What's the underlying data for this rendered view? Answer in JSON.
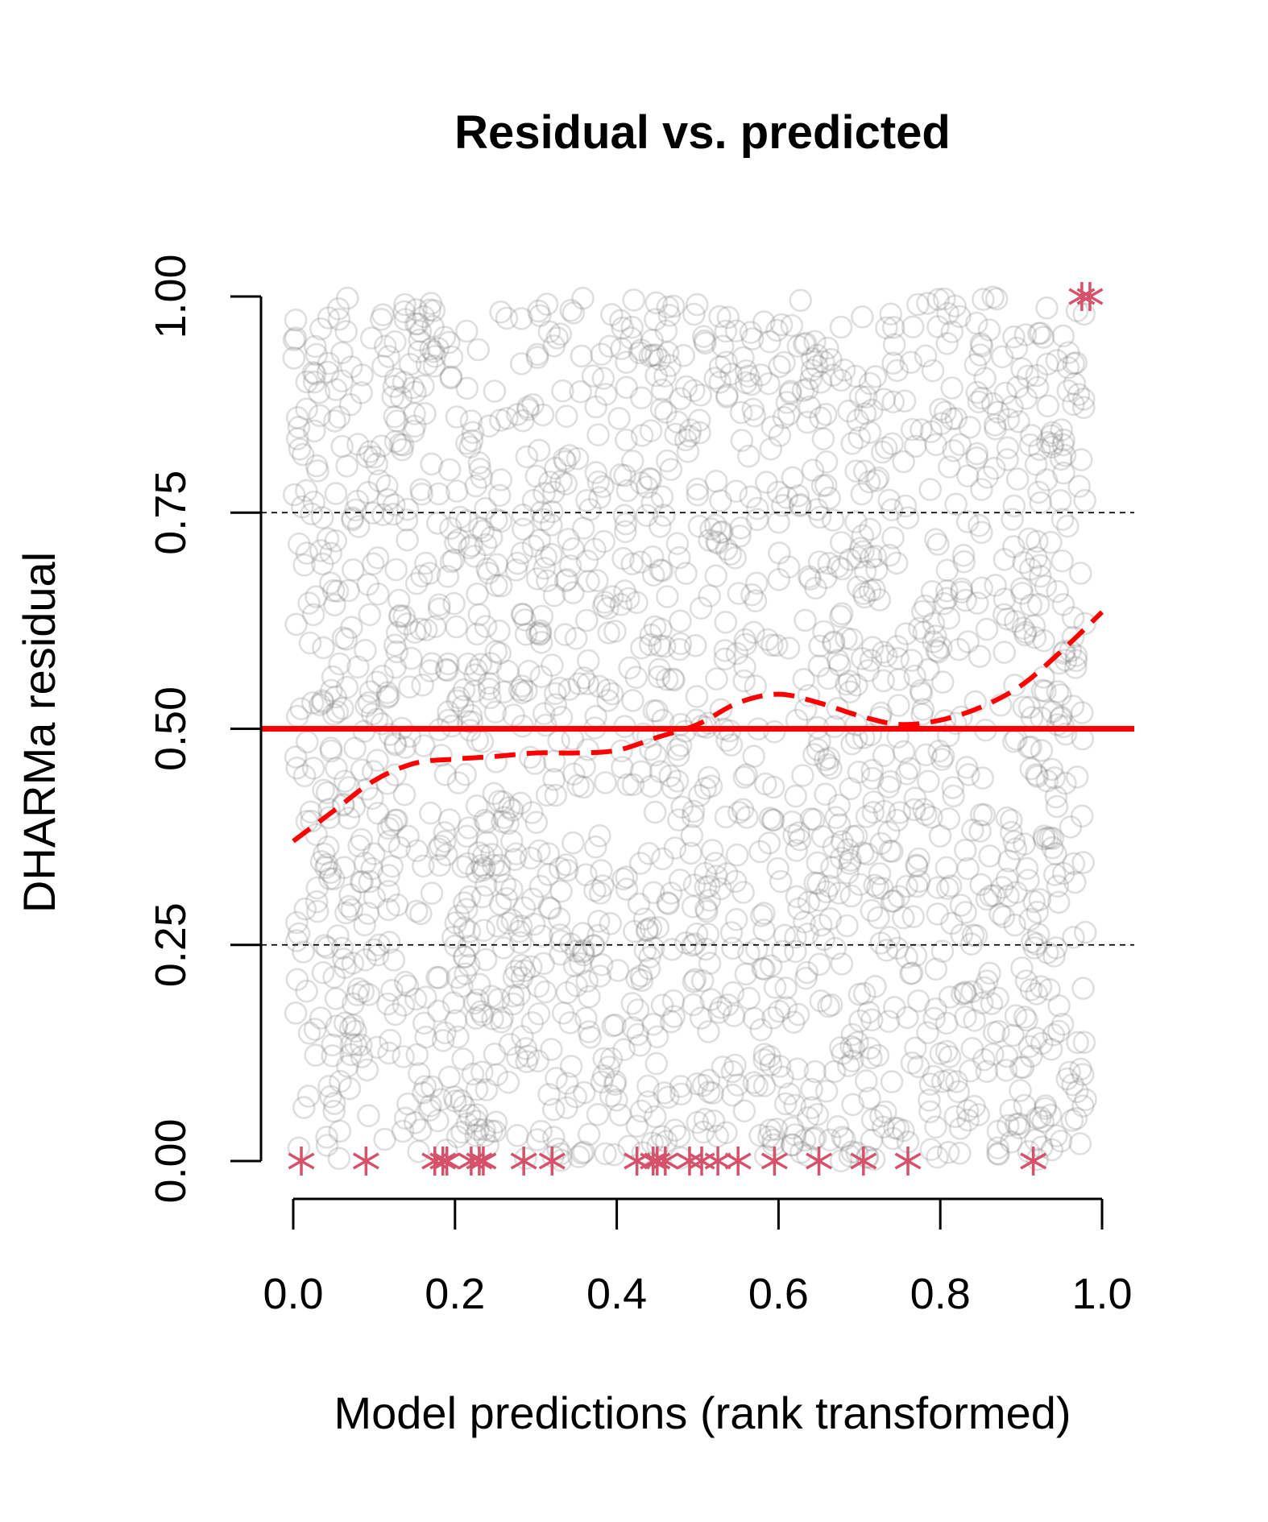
{
  "chart_data": {
    "type": "scatter",
    "title": "Residual vs. predicted",
    "xlabel": "Model predictions (rank transformed)",
    "ylabel": "DHARMa residual",
    "xlim": [
      0,
      1
    ],
    "ylim": [
      0,
      1
    ],
    "x_ticks": [
      "0.0",
      "0.2",
      "0.4",
      "0.6",
      "0.8",
      "1.0"
    ],
    "y_ticks": [
      "0.00",
      "0.25",
      "0.50",
      "0.75",
      "1.00"
    ],
    "reference_lines": {
      "solid": {
        "y": 0.5,
        "color": "#ff0000"
      },
      "dashed": [
        0.25,
        0.75
      ]
    },
    "point_style": {
      "shape": "open-circle",
      "color": "#808080",
      "alpha": 0.25,
      "approx_count": 2000
    },
    "outlier_color": "#d6516a",
    "outliers_low": [
      0.01,
      0.09,
      0.175,
      0.185,
      0.19,
      0.22,
      0.23,
      0.235,
      0.285,
      0.32,
      0.425,
      0.445,
      0.45,
      0.46,
      0.49,
      0.505,
      0.525,
      0.55,
      0.595,
      0.65,
      0.705,
      0.76,
      0.915
    ],
    "outliers_high": [
      0.975,
      0.985
    ],
    "smooth_line": {
      "color": "#ff0000",
      "style": "dashed",
      "points": [
        [
          0.0,
          0.37
        ],
        [
          0.05,
          0.405
        ],
        [
          0.1,
          0.44
        ],
        [
          0.15,
          0.46
        ],
        [
          0.2,
          0.465
        ],
        [
          0.25,
          0.468
        ],
        [
          0.3,
          0.472
        ],
        [
          0.35,
          0.472
        ],
        [
          0.4,
          0.475
        ],
        [
          0.45,
          0.49
        ],
        [
          0.5,
          0.505
        ],
        [
          0.55,
          0.53
        ],
        [
          0.6,
          0.54
        ],
        [
          0.65,
          0.53
        ],
        [
          0.7,
          0.515
        ],
        [
          0.75,
          0.505
        ],
        [
          0.8,
          0.51
        ],
        [
          0.85,
          0.525
        ],
        [
          0.9,
          0.55
        ],
        [
          0.95,
          0.59
        ],
        [
          1.0,
          0.635
        ]
      ]
    }
  }
}
